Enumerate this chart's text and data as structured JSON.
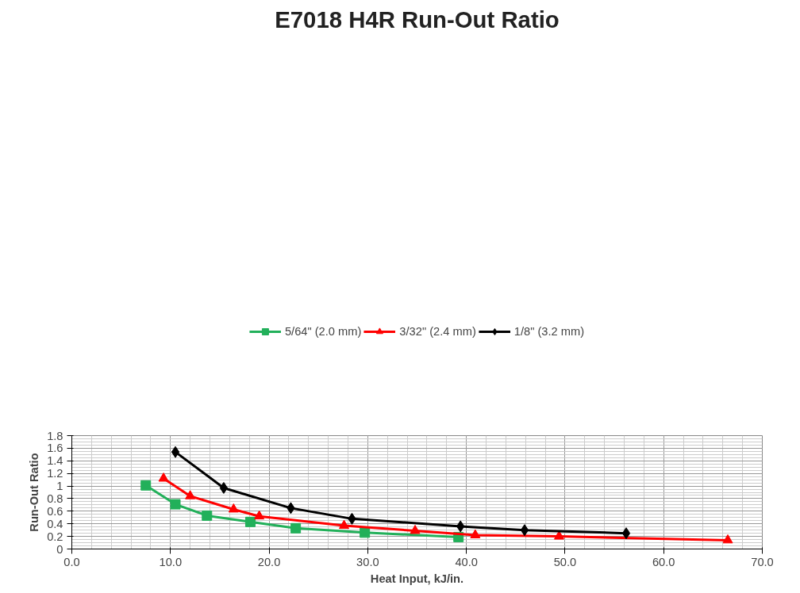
{
  "chart_data": {
    "type": "line",
    "title": "E7018 H4R Run-Out Ratio",
    "xlabel": "Heat Input, kJ/in.",
    "ylabel": "Run-Out Ratio",
    "xlim": [
      0,
      70
    ],
    "xticks": [
      {
        "value": 0,
        "label": "0.0"
      },
      {
        "value": 10,
        "label": "10.0"
      },
      {
        "value": 20,
        "label": "20.0"
      },
      {
        "value": 30,
        "label": "30.0"
      },
      {
        "value": 40,
        "label": "40.0"
      },
      {
        "value": 50,
        "label": "50.0"
      },
      {
        "value": 60,
        "label": "60.0"
      },
      {
        "value": 70,
        "label": "70.0"
      }
    ],
    "ylim": [
      0,
      1.8
    ],
    "yticks": [
      0,
      0.2,
      0.4,
      0.6,
      0.8,
      1,
      1.2,
      1.4,
      1.6,
      1.8
    ],
    "grid": true,
    "legend": "top",
    "series": [
      {
        "name": "5/64\" (2.0 mm)",
        "color": "#22b05a",
        "marker": "square",
        "x": [
          7.5,
          10.5,
          13.7,
          18.1,
          22.7,
          29.7,
          39.2
        ],
        "values": [
          1.01,
          0.71,
          0.53,
          0.43,
          0.33,
          0.26,
          0.19
        ]
      },
      {
        "name": "3/32\" (2.4 mm)",
        "color": "#ff0000",
        "marker": "triangle",
        "x": [
          9.3,
          12.0,
          16.4,
          19.0,
          27.6,
          34.8,
          40.9,
          49.4,
          66.5
        ],
        "values": [
          1.12,
          0.84,
          0.63,
          0.52,
          0.37,
          0.29,
          0.22,
          0.2,
          0.14
        ]
      },
      {
        "name": "1/8\" (3.2 mm)",
        "color": "#000000",
        "marker": "diamond",
        "x": [
          10.5,
          15.4,
          22.2,
          28.4,
          39.4,
          45.9,
          56.2
        ],
        "values": [
          1.54,
          0.97,
          0.65,
          0.48,
          0.36,
          0.3,
          0.25
        ]
      }
    ]
  }
}
